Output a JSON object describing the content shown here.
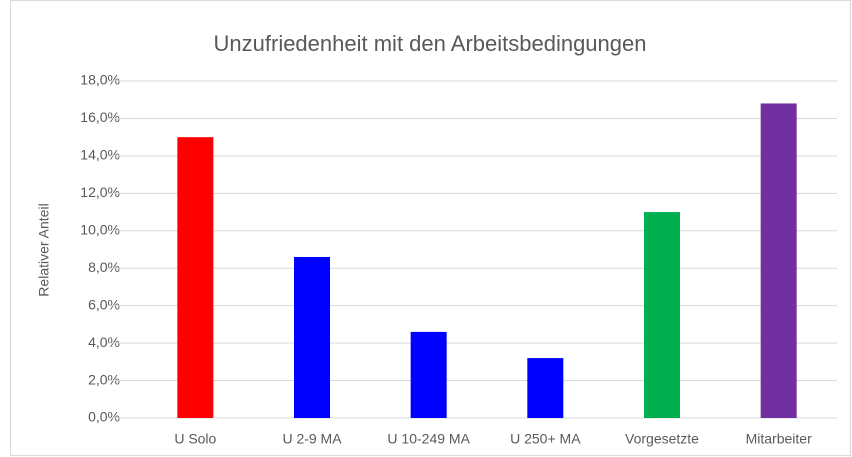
{
  "chart_data": {
    "type": "bar",
    "title": "Unzufriedenheit mit den Arbeitsbedingungen",
    "y_label": "Relativer Anteil",
    "categories": [
      "U Solo",
      "U 2-9 MA",
      "U 10-249 MA",
      "U 250+ MA",
      "Vorgesetzte",
      "Mitarbeiter"
    ],
    "values": [
      15.0,
      8.6,
      4.6,
      3.2,
      11.0,
      16.8
    ],
    "colors": [
      "#ff0000",
      "#0000ff",
      "#0000ff",
      "#0000ff",
      "#00b050",
      "#7030a0"
    ],
    "ylim": [
      0,
      18
    ],
    "yticks": [
      {
        "value": 0,
        "label": "0,0%"
      },
      {
        "value": 2,
        "label": "2,0%"
      },
      {
        "value": 4,
        "label": "4,0%"
      },
      {
        "value": 6,
        "label": "6,0%"
      },
      {
        "value": 8,
        "label": "8,0%"
      },
      {
        "value": 10,
        "label": "10,0%"
      },
      {
        "value": 12,
        "label": "12,0%"
      },
      {
        "value": 14,
        "label": "14,0%"
      },
      {
        "value": 16,
        "label": "16,0%"
      },
      {
        "value": 18,
        "label": "18,0%"
      }
    ],
    "grid": true
  }
}
